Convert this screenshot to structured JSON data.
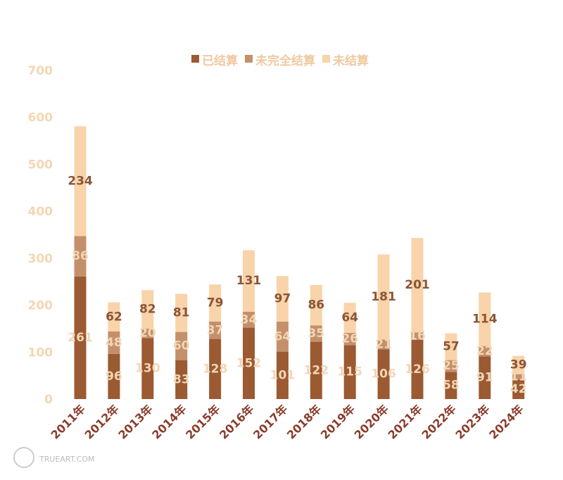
{
  "chart_data": {
    "type": "bar",
    "stacked": true,
    "categories": [
      "2011年",
      "2012年",
      "2013年",
      "2014年",
      "2015年",
      "2016年",
      "2017年",
      "2018年",
      "2019年",
      "2020年",
      "2021年",
      "2022年",
      "2023年",
      "2024年"
    ],
    "series": [
      {
        "name": "已结算",
        "color": "#9b5a32",
        "label_color": "#f3d6b4",
        "values": [
          261,
          96,
          130,
          83,
          128,
          152,
          101,
          122,
          115,
          106,
          126,
          58,
          91,
          42
        ]
      },
      {
        "name": "未完全结算",
        "color": "#c4906c",
        "label_color": "#f3d6b4",
        "values": [
          86,
          48,
          20,
          60,
          37,
          34,
          64,
          35,
          26,
          21,
          16,
          25,
          22,
          11
        ]
      },
      {
        "name": "未结算",
        "color": "#f9d3a9",
        "label_color": "#8a5536",
        "values": [
          234,
          62,
          82,
          81,
          79,
          131,
          97,
          86,
          64,
          181,
          201,
          57,
          114,
          39
        ]
      }
    ],
    "ylim": [
      0,
      700
    ],
    "yticks": [
      0,
      100,
      200,
      300,
      400,
      500,
      600,
      700
    ],
    "grid": false,
    "legend_position": "top-center"
  },
  "watermark": "TRUEART.COM"
}
